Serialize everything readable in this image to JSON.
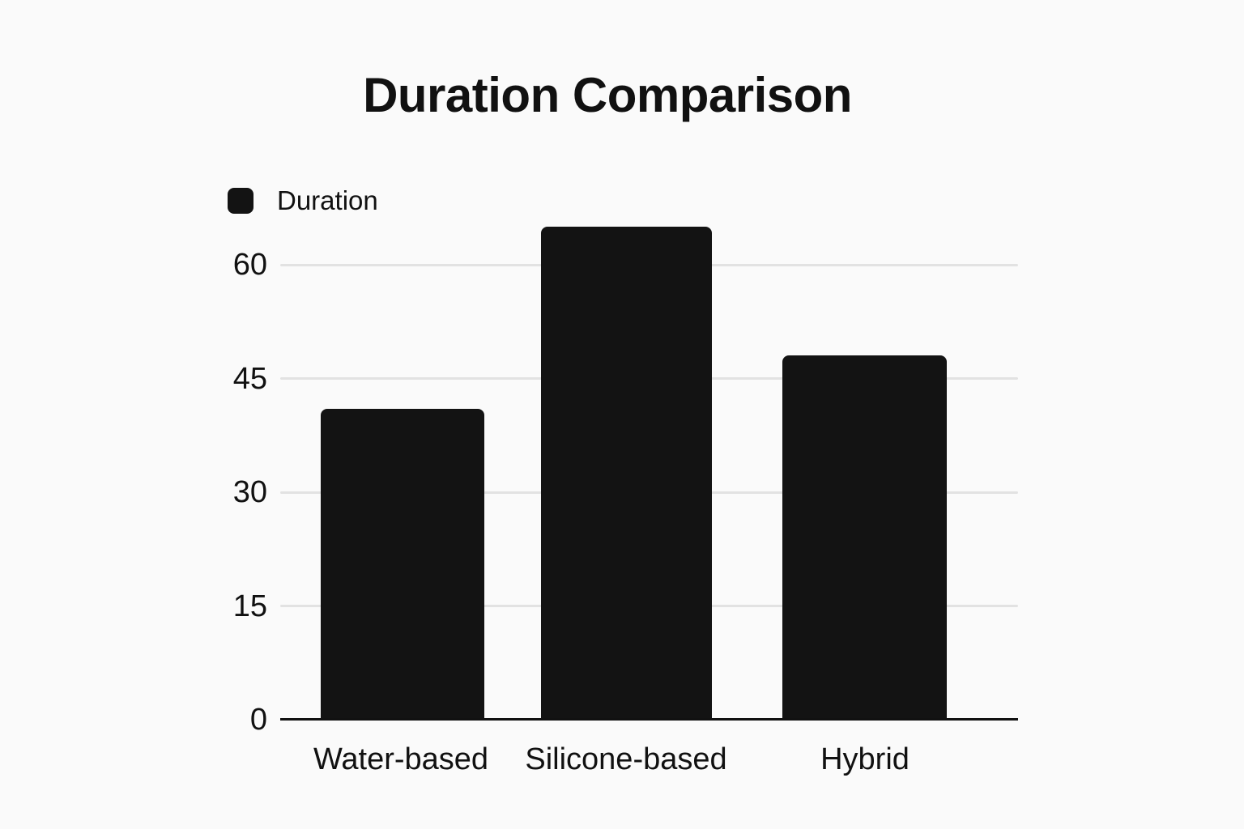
{
  "chart": {
    "title": "Duration Comparison",
    "legend": {
      "label": "Duration",
      "swatch_color": "#131313"
    }
  },
  "chart_data": {
    "type": "bar",
    "title": "Duration Comparison",
    "categories": [
      "Water-based",
      "Silicone-based",
      "Hybrid"
    ],
    "series": [
      {
        "name": "Duration",
        "values": [
          41,
          65,
          48
        ]
      }
    ],
    "xlabel": "",
    "ylabel": "",
    "ylim": [
      0,
      67
    ],
    "yticks": [
      0,
      15,
      30,
      45,
      60
    ],
    "grid": true,
    "legend_position": "top-left",
    "bar_color": "#131313",
    "gridline_color": "#e2e2e2",
    "axis_color": "#111111",
    "background": "#fafafa"
  }
}
